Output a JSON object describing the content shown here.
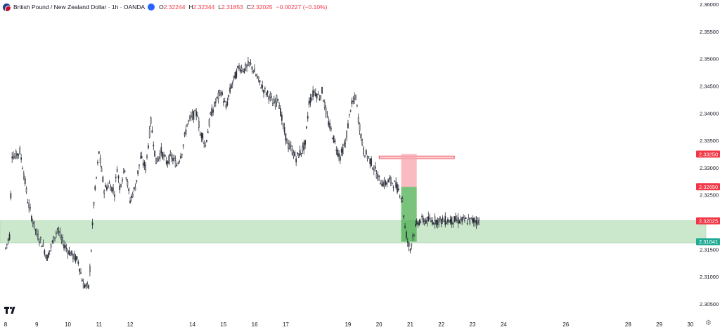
{
  "header": {
    "symbol": "British Pound / New Zealand Dollar · 1h · OANDA",
    "open_label": "O",
    "open": "2.32244",
    "high_label": "H",
    "high": "2.32344",
    "low_label": "L",
    "low": "2.31853",
    "close_label": "C",
    "close": "2.32025",
    "change": "−0.00227 (−0.10%)"
  },
  "chart_data": {
    "type": "candlestick",
    "timeframe": "1h",
    "y_ticks": [
      2.36,
      2.355,
      2.35,
      2.345,
      2.34,
      2.335,
      2.33,
      2.325,
      2.32,
      2.315,
      2.31,
      2.305
    ],
    "y_tick_labels": [
      "2.36000",
      "2.35500",
      "2.35000",
      "2.34500",
      "2.34000",
      "2.33500",
      "2.33000",
      "2.32500",
      "2.32000",
      "2.31500",
      "2.31000",
      "2.30500"
    ],
    "ylim": [
      2.30425,
      2.36075
    ],
    "x_tick_labels": [
      "8",
      "9",
      "10",
      "11",
      "12",
      "14",
      "15",
      "16",
      "17",
      "19",
      "20",
      "21",
      "22",
      "23",
      "24",
      "26",
      "28",
      "29",
      "30"
    ],
    "x_tick_index": [
      0,
      24,
      48,
      72,
      96,
      144,
      168,
      192,
      216,
      264,
      288,
      312,
      336,
      360,
      384,
      432,
      480,
      504,
      528
    ],
    "candle_range": [
      0,
      365
    ],
    "price_path": [
      [
        0,
        2.3152
      ],
      [
        3,
        2.3175
      ],
      [
        5,
        2.3325
      ],
      [
        7,
        2.332
      ],
      [
        11,
        2.333
      ],
      [
        14,
        2.329
      ],
      [
        17,
        2.324
      ],
      [
        20,
        2.321
      ],
      [
        24,
        2.3178
      ],
      [
        28,
        2.3162
      ],
      [
        32,
        2.3135
      ],
      [
        35,
        2.3155
      ],
      [
        40,
        2.3188
      ],
      [
        43,
        2.3168
      ],
      [
        46,
        2.3155
      ],
      [
        50,
        2.3143
      ],
      [
        56,
        2.3128
      ],
      [
        60,
        2.3085
      ],
      [
        64,
        2.308
      ],
      [
        66,
        2.315
      ],
      [
        68,
        2.3235
      ],
      [
        72,
        2.3328
      ],
      [
        76,
        2.326
      ],
      [
        80,
        2.327
      ],
      [
        84,
        2.3255
      ],
      [
        86,
        2.33
      ],
      [
        88,
        2.3265
      ],
      [
        92,
        2.33
      ],
      [
        96,
        2.324
      ],
      [
        100,
        2.3265
      ],
      [
        104,
        2.3318
      ],
      [
        108,
        2.33
      ],
      [
        112,
        2.3385
      ],
      [
        116,
        2.331
      ],
      [
        120,
        2.333
      ],
      [
        124,
        2.331
      ],
      [
        128,
        2.332
      ],
      [
        132,
        2.3305
      ],
      [
        136,
        2.333
      ],
      [
        140,
        2.338
      ],
      [
        144,
        2.3395
      ],
      [
        148,
        2.34
      ],
      [
        150,
        2.336
      ],
      [
        152,
        2.336
      ],
      [
        154,
        2.334
      ],
      [
        158,
        2.3395
      ],
      [
        162,
        2.342
      ],
      [
        166,
        2.344
      ],
      [
        170,
        2.341
      ],
      [
        174,
        2.345
      ],
      [
        180,
        2.3485
      ],
      [
        184,
        2.348
      ],
      [
        188,
        2.349
      ],
      [
        190,
        2.3485
      ],
      [
        192,
        2.3475
      ],
      [
        196,
        2.3455
      ],
      [
        200,
        2.344
      ],
      [
        204,
        2.343
      ],
      [
        206,
        2.3418
      ],
      [
        208,
        2.342
      ],
      [
        210,
        2.343
      ],
      [
        214,
        2.3375
      ],
      [
        218,
        2.334
      ],
      [
        220,
        2.3335
      ],
      [
        224,
        2.3318
      ],
      [
        228,
        2.333
      ],
      [
        231,
        2.3343
      ],
      [
        234,
        2.342
      ],
      [
        238,
        2.344
      ],
      [
        242,
        2.343
      ],
      [
        244,
        2.344
      ],
      [
        248,
        2.339
      ],
      [
        252,
        2.336
      ],
      [
        256,
        2.333
      ],
      [
        258,
        2.332
      ],
      [
        262,
        2.3345
      ],
      [
        266,
        2.341
      ],
      [
        270,
        2.343
      ],
      [
        272,
        2.339
      ],
      [
        276,
        2.333
      ],
      [
        280,
        2.3318
      ],
      [
        284,
        2.33
      ],
      [
        288,
        2.3278
      ],
      [
        292,
        2.327
      ],
      [
        296,
        2.3276
      ],
      [
        300,
        2.327
      ],
      [
        304,
        2.3255
      ],
      [
        306,
        2.324
      ],
      [
        308,
        2.319
      ],
      [
        310,
        2.3165
      ],
      [
        312,
        2.315
      ],
      [
        314,
        2.3175
      ],
      [
        316,
        2.319
      ],
      [
        318,
        2.32
      ],
      [
        320,
        2.3203
      ]
    ],
    "zones": [
      {
        "label": "demand zone",
        "y_top": 2.3203,
        "y_bottom": 2.3162,
        "x_from": 0,
        "x_to": 540,
        "color": "#c8e6c9"
      },
      {
        "label": "supply zone",
        "y_top": 2.33215,
        "y_bottom": 2.33165,
        "x_from": 288,
        "x_to": 346,
        "color": "#f8c8cc"
      }
    ],
    "position": {
      "type": "short",
      "entry": 2.3265,
      "stop": 2.3325,
      "target": 2.31641,
      "x_from": 305,
      "x_to": 317
    },
    "price_labels": [
      {
        "value": 2.3325,
        "text": "2.33250",
        "color": "#f23645"
      },
      {
        "value": 2.3265,
        "text": "2.32650",
        "color": "#f23645"
      },
      {
        "value": 2.32025,
        "text": "2.32025",
        "color": "#f23645"
      },
      {
        "value": 2.31641,
        "text": "2.31641",
        "color": "#22ab94"
      }
    ],
    "colors": {
      "up": "#089981",
      "down": "#f23645",
      "candle": "#2a2e39",
      "grid": "#f0f3fa"
    }
  },
  "icons": {
    "logo": "tradingview-logo-icon",
    "settings": "gear-icon"
  },
  "logo_text": "TV"
}
